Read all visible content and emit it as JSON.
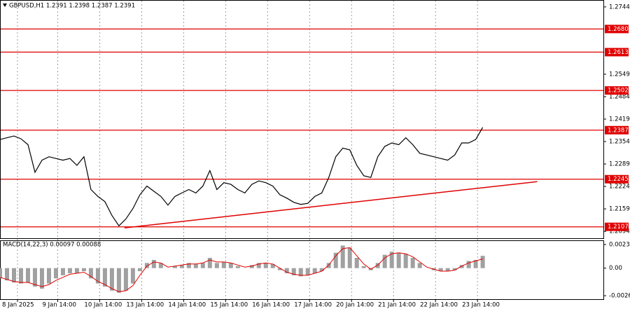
{
  "chart_data": [
    {
      "type": "line",
      "title": "GBPUSD,H1  1.2391 1.2398 1.2387 1.2391",
      "color": "#000000",
      "grid": true,
      "xlim": [
        0,
        345
      ],
      "ylim": [
        1.2074,
        1.2764
      ],
      "xticks": [
        {
          "value": 10,
          "label": "8 Jan 2025"
        },
        {
          "value": 33,
          "label": "9 Jan 14:00"
        },
        {
          "value": 57,
          "label": "10 Jan 14:00"
        },
        {
          "value": 81,
          "label": "13 Jan 14:00"
        },
        {
          "value": 105,
          "label": "14 Jan 14:00"
        },
        {
          "value": 129,
          "label": "15 Jan 14:00"
        },
        {
          "value": 153,
          "label": "16 Jan 14:00"
        },
        {
          "value": 177,
          "label": "17 Jan 14:00"
        },
        {
          "value": 201,
          "label": "20 Jan 14:00"
        },
        {
          "value": 225,
          "label": "21 Jan 14:00"
        },
        {
          "value": 249,
          "label": "22 Jan 14:00"
        },
        {
          "value": 273,
          "label": "23 Jan 14:00"
        }
      ],
      "yticks": [
        1.2744,
        1.2549,
        1.2484,
        1.2419,
        1.2354,
        1.2289,
        1.2224,
        1.2159,
        1.2094
      ],
      "levels": {
        "color": "#e00000",
        "values": [
          {
            "value": 1.268,
            "label": "1.2680"
          },
          1.2613,
          1.2502,
          1.2387,
          1.2245,
          1.2107
        ]
      },
      "trendline": {
        "color": "#e00000",
        "x": [
          71.2,
          307.2
        ],
        "y": [
          1.2104,
          1.2238
        ]
      },
      "x": [
        0,
        4,
        8,
        12,
        16,
        20,
        24,
        28,
        32,
        36,
        40,
        44,
        48,
        52,
        56,
        60,
        64,
        68,
        72,
        76,
        80,
        84,
        88,
        92,
        96,
        100,
        104,
        108,
        112,
        116,
        120,
        124,
        128,
        132,
        136,
        140,
        144,
        148,
        152,
        156,
        160,
        164,
        168,
        172,
        176,
        180,
        184,
        188,
        192,
        196,
        200,
        204,
        208,
        212,
        216,
        220,
        224,
        228,
        232,
        236,
        240,
        244,
        248,
        252,
        256,
        260,
        264,
        268,
        272,
        276
      ],
      "values": [
        1.236,
        1.2365,
        1.237,
        1.2362,
        1.2345,
        1.2265,
        1.23,
        1.231,
        1.2305,
        1.23,
        1.2305,
        1.2285,
        1.231,
        1.2215,
        1.2195,
        1.218,
        1.214,
        1.211,
        1.213,
        1.216,
        1.22,
        1.2225,
        1.221,
        1.2195,
        1.217,
        1.2195,
        1.2205,
        1.2215,
        1.2205,
        1.2225,
        1.227,
        1.2215,
        1.2235,
        1.223,
        1.2215,
        1.2205,
        1.223,
        1.224,
        1.2235,
        1.2225,
        1.22,
        1.219,
        1.2178,
        1.2172,
        1.2175,
        1.2195,
        1.2205,
        1.225,
        1.231,
        1.2335,
        1.233,
        1.2285,
        1.2255,
        1.225,
        1.231,
        1.234,
        1.235,
        1.2345,
        1.2365,
        1.2345,
        1.232,
        1.2315,
        1.231,
        1.2305,
        1.23,
        1.2315,
        1.235,
        1.235,
        1.236,
        1.2395
      ]
    },
    {
      "type": "bar",
      "title": "MACD(14,22,3) 0.00097 0.00088",
      "color": "#a0a0a0",
      "ylim": [
        -0.00303,
        0.00271
      ],
      "yticks": [
        0.0023,
        {
          "value": 0,
          "label": "0.00"
        },
        -0.00269
      ],
      "x": [
        0,
        4,
        8,
        12,
        16,
        20,
        24,
        28,
        32,
        36,
        40,
        44,
        48,
        52,
        56,
        60,
        64,
        68,
        72,
        76,
        80,
        84,
        88,
        92,
        96,
        100,
        104,
        108,
        112,
        116,
        120,
        124,
        128,
        132,
        136,
        140,
        144,
        148,
        152,
        156,
        160,
        164,
        168,
        172,
        176,
        180,
        184,
        188,
        192,
        196,
        200,
        204,
        208,
        212,
        216,
        220,
        224,
        228,
        232,
        236,
        240,
        244,
        248,
        252,
        256,
        260,
        264,
        268,
        272,
        276
      ],
      "values": [
        -0.001,
        -0.0012,
        -0.0014,
        -0.0015,
        -0.0014,
        -0.0018,
        -0.002,
        -0.0015,
        -0.001,
        -0.0007,
        -0.0005,
        -0.0005,
        -0.0003,
        -0.001,
        -0.0015,
        -0.0018,
        -0.0022,
        -0.0024,
        -0.0022,
        -0.0015,
        -0.0003,
        0.0005,
        0.0008,
        0.0005,
        0.0,
        0.0002,
        0.0003,
        0.0005,
        0.0004,
        0.0005,
        0.001,
        0.0005,
        0.0006,
        0.0005,
        0.0002,
        0.0,
        0.0003,
        0.0005,
        0.0005,
        0.0004,
        -0.0002,
        -0.0005,
        -0.0007,
        -0.0008,
        -0.0007,
        -0.0005,
        -0.0003,
        0.0005,
        0.0015,
        0.0022,
        0.002,
        0.001,
        0.0002,
        -0.0002,
        0.0005,
        0.0013,
        0.0016,
        0.0015,
        0.0014,
        0.001,
        0.0005,
        0.0,
        -0.0002,
        -0.0003,
        -0.0003,
        -0.0002,
        0.0003,
        0.0007,
        0.0008,
        0.0012
      ],
      "signal": {
        "color": "#e00000",
        "values": [
          -0.0009,
          -0.0011,
          -0.0013,
          -0.0014,
          -0.0014,
          -0.0016,
          -0.0018,
          -0.0016,
          -0.0012,
          -0.0009,
          -0.0006,
          -0.0005,
          -0.0004,
          -0.0008,
          -0.0013,
          -0.0016,
          -0.002,
          -0.0023,
          -0.0022,
          -0.0017,
          -0.0007,
          0.0002,
          0.0006,
          0.0005,
          0.0001,
          0.0002,
          0.0003,
          0.0004,
          0.0004,
          0.0005,
          0.0008,
          0.0006,
          0.0006,
          0.0005,
          0.0003,
          0.0001,
          0.0002,
          0.0004,
          0.0005,
          0.0004,
          0.0,
          -0.0004,
          -0.0006,
          -0.0007,
          -0.0007,
          -0.0005,
          -0.0003,
          0.0003,
          0.0012,
          0.0019,
          0.002,
          0.0012,
          0.0004,
          -0.0001,
          0.0003,
          0.001,
          0.0014,
          0.0015,
          0.0014,
          0.0011,
          0.0006,
          0.0001,
          -0.0001,
          -0.0003,
          -0.0003,
          -0.0002,
          0.0002,
          0.0005,
          0.0007,
          0.0009
        ]
      }
    }
  ]
}
